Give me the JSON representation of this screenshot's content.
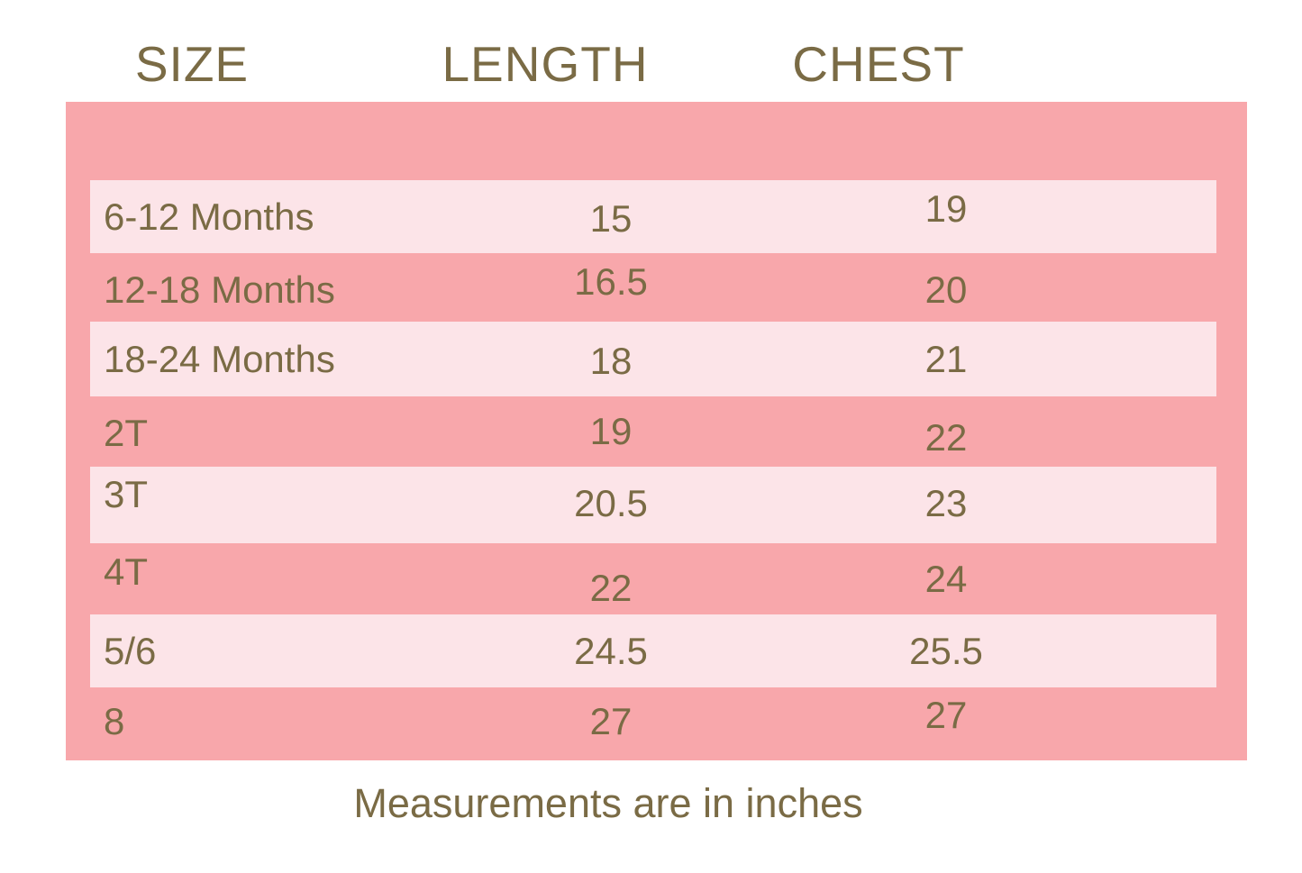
{
  "colors": {
    "background": "#ffffff",
    "panel_pink": "#f8a7ab",
    "stripe_pink": "#fce4e8",
    "text_olive": "#7a6b45"
  },
  "header": {
    "size_label": "SIZE",
    "length_label": "LENGTH",
    "chest_label": "CHEST"
  },
  "rows": [
    {
      "size": "6-12 Months",
      "length": "15",
      "chest": "19"
    },
    {
      "size": "12-18 Months",
      "length": "16.5",
      "chest": "20"
    },
    {
      "size": "18-24 Months",
      "length": "18",
      "chest": "21"
    },
    {
      "size": "2T",
      "length": "19",
      "chest": "22"
    },
    {
      "size": "3T",
      "length": "20.5",
      "chest": "23"
    },
    {
      "size": "4T",
      "length": "22",
      "chest": "24"
    },
    {
      "size": "5/6",
      "length": "24.5",
      "chest": "25.5"
    },
    {
      "size": "8",
      "length": "27",
      "chest": "27"
    }
  ],
  "footer": {
    "note": "Measurements are in inches"
  },
  "chart_data": {
    "type": "table",
    "title": "Children's clothing size chart",
    "columns": [
      "SIZE",
      "LENGTH",
      "CHEST"
    ],
    "rows": [
      [
        "6-12 Months",
        15,
        19
      ],
      [
        "12-18 Months",
        16.5,
        20
      ],
      [
        "18-24 Months",
        18,
        21
      ],
      [
        "2T",
        19,
        22
      ],
      [
        "3T",
        20.5,
        23
      ],
      [
        "4T",
        22,
        24
      ],
      [
        "5/6",
        24.5,
        25.5
      ],
      [
        "8",
        27,
        27
      ]
    ],
    "units": "inches",
    "note": "Measurements are in inches"
  }
}
